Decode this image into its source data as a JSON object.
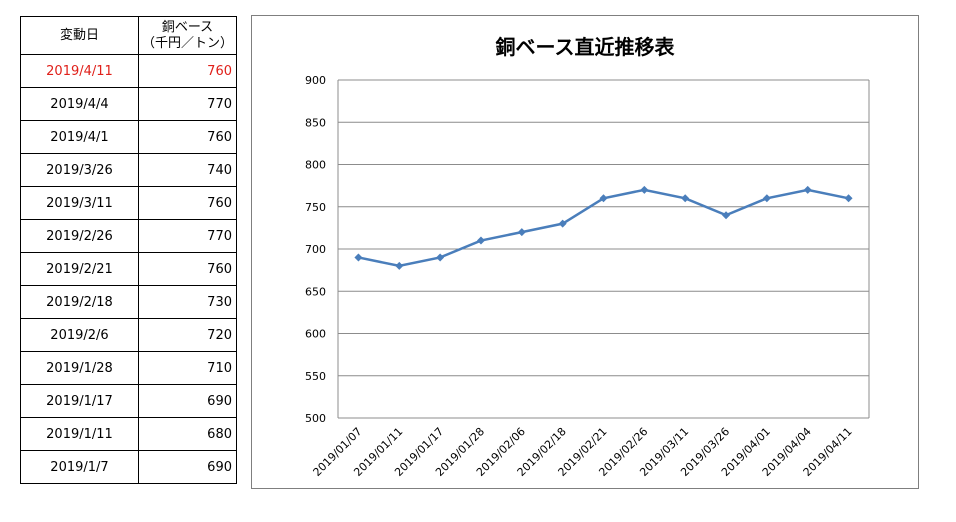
{
  "table": {
    "header_date": "変動日",
    "header_price": "銅ベース\n（千円／トン）",
    "rows": [
      {
        "date": "2019/4/11",
        "value": "760"
      },
      {
        "date": "2019/4/4",
        "value": "770"
      },
      {
        "date": "2019/4/1",
        "value": "760"
      },
      {
        "date": "2019/3/26",
        "value": "740"
      },
      {
        "date": "2019/3/11",
        "value": "760"
      },
      {
        "date": "2019/2/26",
        "value": "770"
      },
      {
        "date": "2019/2/21",
        "value": "760"
      },
      {
        "date": "2019/2/18",
        "value": "730"
      },
      {
        "date": "2019/2/6",
        "value": "720"
      },
      {
        "date": "2019/1/28",
        "value": "710"
      },
      {
        "date": "2019/1/17",
        "value": "690"
      },
      {
        "date": "2019/1/11",
        "value": "680"
      },
      {
        "date": "2019/1/7",
        "value": "690"
      }
    ],
    "highlight_color": "#e0201a"
  },
  "chart_data": {
    "type": "line",
    "title": "銅ベース直近推移表",
    "categories": [
      "2019/01/07",
      "2019/01/11",
      "2019/01/17",
      "2019/01/28",
      "2019/02/06",
      "2019/02/18",
      "2019/02/21",
      "2019/02/26",
      "2019/03/11",
      "2019/03/26",
      "2019/04/01",
      "2019/04/04",
      "2019/04/11"
    ],
    "series": [
      {
        "values": [
          690,
          680,
          690,
          710,
          720,
          730,
          760,
          770,
          760,
          740,
          760,
          770,
          760
        ],
        "color": "#4a7ebb"
      }
    ],
    "ylim": [
      500,
      900
    ],
    "yticks": [
      500,
      550,
      600,
      650,
      700,
      750,
      800,
      850,
      900
    ],
    "grid": true,
    "xlabel": "",
    "ylabel": ""
  }
}
